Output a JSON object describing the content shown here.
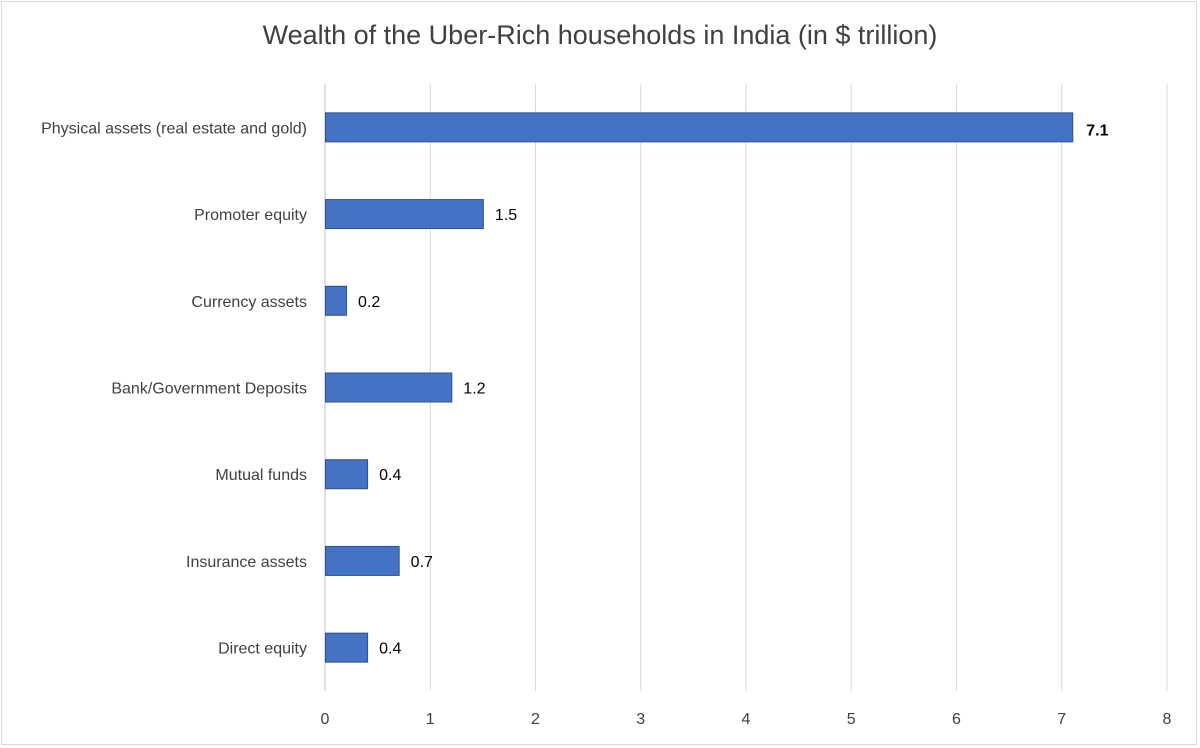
{
  "chart_data": {
    "type": "bar",
    "orientation": "horizontal",
    "title": "Wealth of the Uber-Rich households in India (in $ trillion)",
    "categories": [
      "Physical assets (real estate and gold)",
      "Promoter equity",
      "Currency assets",
      "Bank/Government Deposits",
      "Mutual funds",
      "Insurance assets",
      "Direct equity"
    ],
    "values": [
      7.1,
      1.5,
      0.2,
      1.2,
      0.4,
      0.7,
      0.4
    ],
    "data_labels": [
      "7.1",
      "1.5",
      "0.2",
      "1.2",
      "0.4",
      "0.7",
      "0.4"
    ],
    "highlight_index": 0,
    "xlim": [
      0,
      8
    ],
    "x_ticks": [
      "0",
      "1",
      "2",
      "3",
      "4",
      "5",
      "6",
      "7",
      "8"
    ],
    "grid": "vertical",
    "legend": "none",
    "colors": {
      "bar": "#4472c4",
      "bar_border": "#2f528f",
      "gridline": "#d9d9d9",
      "highlight_label": "#e00000",
      "text": "#404040"
    }
  }
}
